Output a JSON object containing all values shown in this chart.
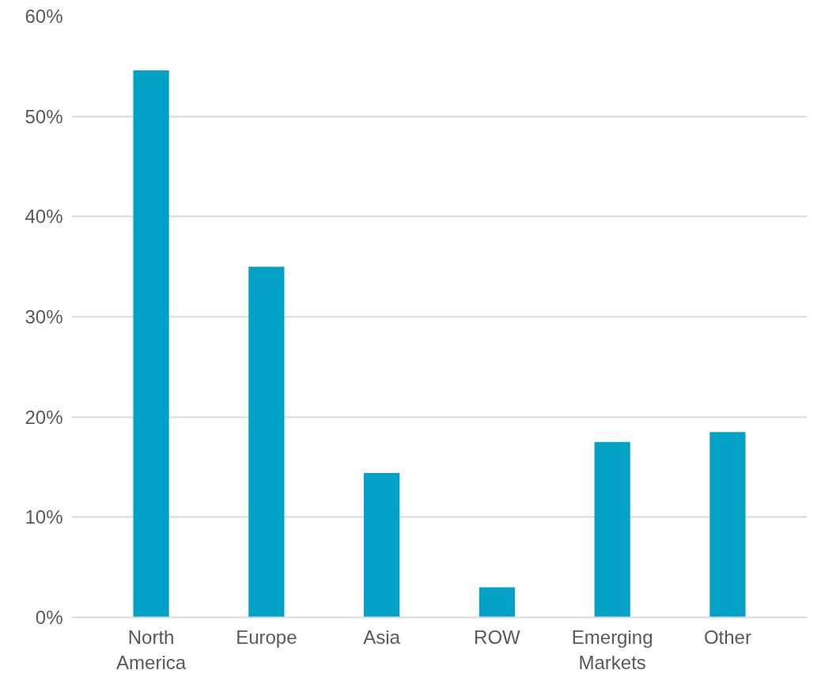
{
  "chart_data": {
    "type": "bar",
    "categories": [
      "North America",
      "Europe",
      "Asia",
      "ROW",
      "Emerging Markets",
      "Other"
    ],
    "values": [
      54.6,
      35.0,
      14.4,
      3.0,
      17.5,
      18.5
    ],
    "color": "#04a1c7",
    "ylim": [
      0,
      60
    ],
    "yticks": [
      {
        "value": 0,
        "label": "0%"
      },
      {
        "value": 10,
        "label": "10%"
      },
      {
        "value": 20,
        "label": "20%"
      },
      {
        "value": 30,
        "label": "30%"
      },
      {
        "value": 40,
        "label": "40%"
      },
      {
        "value": 50,
        "label": "50%"
      },
      {
        "value": 60,
        "label": "60%"
      }
    ],
    "grid": "y"
  }
}
